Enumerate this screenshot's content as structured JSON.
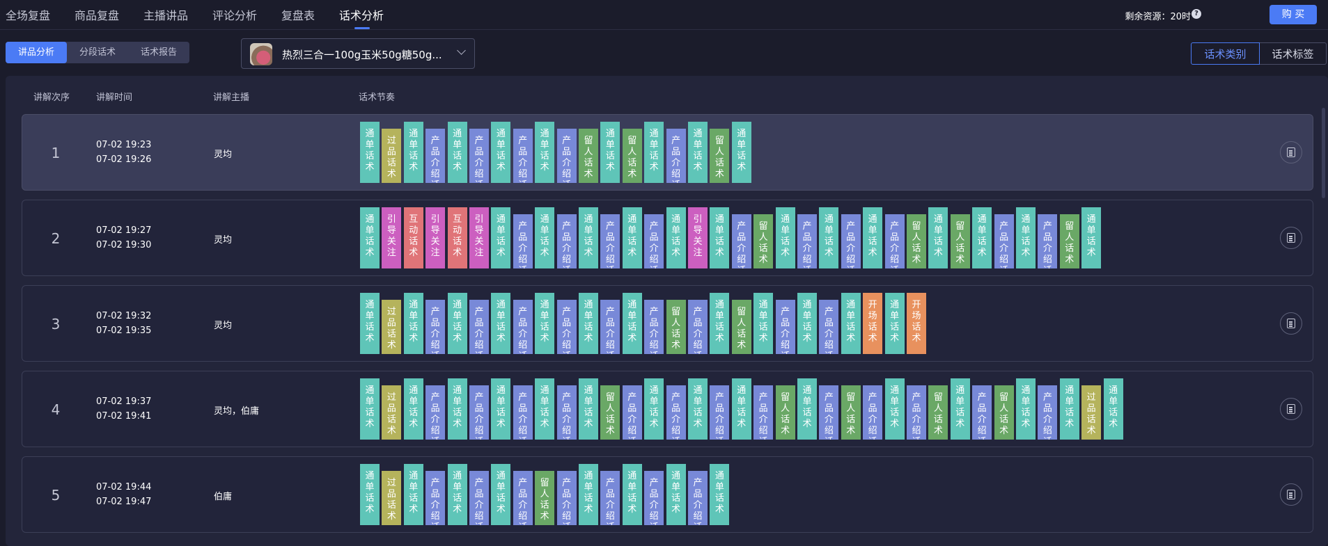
{
  "nav": {
    "tabs": [
      "全场复盘",
      "商品复盘",
      "主播讲品",
      "评论分析",
      "复盘表",
      "话术分析"
    ],
    "active_tab": "话术分析",
    "resource_label": "剩余资源：20时",
    "help_icon": "question-circle-icon",
    "buy_label": "购 买"
  },
  "subtabs": [
    "讲品分析",
    "分段话术",
    "话术报告"
  ],
  "active_subtab": "讲品分析",
  "product_select": {
    "value": "热烈三合一100g玉米50g糖50g...",
    "icon": "chevron-down-icon"
  },
  "view_toggle": [
    "话术类别",
    "话术标签"
  ],
  "active_view": "话术类别",
  "table": {
    "headers": [
      "讲解次序",
      "讲解时间",
      "讲解主播",
      "话术节奏"
    ],
    "rows": [
      {
        "index": "1",
        "start": "07-02 19:23",
        "end": "07-02 19:26",
        "host": "灵均",
        "highlighted": true,
        "blocks": [
          "通单话术",
          "过品话术",
          "通单话术",
          "产品介绍话术",
          "通单话术",
          "产品介绍话术",
          "通单话术",
          "产品介绍话术",
          "通单话术",
          "产品介绍话术",
          "留人话术",
          "通单话术",
          "留人话术",
          "通单话术",
          "产品介绍话术",
          "通单话术",
          "留人话术",
          "通单话术"
        ]
      },
      {
        "index": "2",
        "start": "07-02 19:27",
        "end": "07-02 19:30",
        "host": "灵均",
        "highlighted": false,
        "blocks": [
          "通单话术",
          "引导关注",
          "互动话术",
          "引导关注",
          "互动话术",
          "引导关注",
          "通单话术",
          "产品介绍话术",
          "通单话术",
          "产品介绍话术",
          "通单话术",
          "产品介绍话术",
          "通单话术",
          "产品介绍话术",
          "通单话术",
          "引导关注",
          "通单话术",
          "产品介绍话术",
          "留人话术",
          "通单话术",
          "产品介绍话术",
          "通单话术",
          "产品介绍话术",
          "通单话术",
          "产品介绍话术",
          "留人话术",
          "通单话术",
          "留人话术",
          "通单话术",
          "产品介绍话术",
          "通单话术",
          "产品介绍话术",
          "留人话术",
          "通单话术"
        ]
      },
      {
        "index": "3",
        "start": "07-02 19:32",
        "end": "07-02 19:35",
        "host": "灵均",
        "highlighted": false,
        "blocks": [
          "通单话术",
          "过品话术",
          "通单话术",
          "产品介绍话术",
          "通单话术",
          "产品介绍话术",
          "通单话术",
          "产品介绍话术",
          "通单话术",
          "产品介绍话术",
          "通单话术",
          "产品介绍话术",
          "通单话术",
          "产品介绍话术",
          "留人话术",
          "产品介绍话术",
          "通单话术",
          "留人话术",
          "通单话术",
          "产品介绍话术",
          "通单话术",
          "产品介绍话术",
          "通单话术",
          "开场话术",
          "通单话术",
          "开场话术"
        ]
      },
      {
        "index": "4",
        "start": "07-02 19:37",
        "end": "07-02 19:41",
        "host": "灵均，伯庸",
        "highlighted": false,
        "blocks": [
          "通单话术",
          "过品话术",
          "通单话术",
          "产品介绍话术",
          "通单话术",
          "产品介绍话术",
          "通单话术",
          "产品介绍话术",
          "通单话术",
          "产品介绍话术",
          "通单话术",
          "留人话术",
          "产品介绍话术",
          "通单话术",
          "产品介绍话术",
          "通单话术",
          "产品介绍话术",
          "通单话术",
          "产品介绍话术",
          "留人话术",
          "通单话术",
          "产品介绍话术",
          "留人话术",
          "产品介绍话术",
          "通单话术",
          "产品介绍话术",
          "留人话术",
          "通单话术",
          "产品介绍话术",
          "留人话术",
          "通单话术",
          "产品介绍话术",
          "通单话术",
          "过品话术",
          "通单话术"
        ]
      },
      {
        "index": "5",
        "start": "07-02 19:44",
        "end": "07-02 19:47",
        "host": "伯庸",
        "highlighted": false,
        "blocks": [
          "通单话术",
          "过品话术",
          "通单话术",
          "产品介绍话术",
          "通单话术",
          "产品介绍话术",
          "通单话术",
          "产品介绍话术",
          "留人话术",
          "产品介绍话术",
          "通单话术",
          "产品介绍话术",
          "通单话术",
          "产品介绍话术",
          "通单话术",
          "产品介绍话术",
          "通单话术"
        ]
      }
    ],
    "row_action_icon": "document-icon"
  },
  "block_colors": {
    "通单话术": "#5fc5b8",
    "过品话术": "#b5b35c",
    "产品介绍话术": "#7889d8",
    "留人话术": "#6aa866",
    "引导关注": "#cc5fc0",
    "互动话术": "#e07478",
    "开场话术": "#e8915e"
  }
}
